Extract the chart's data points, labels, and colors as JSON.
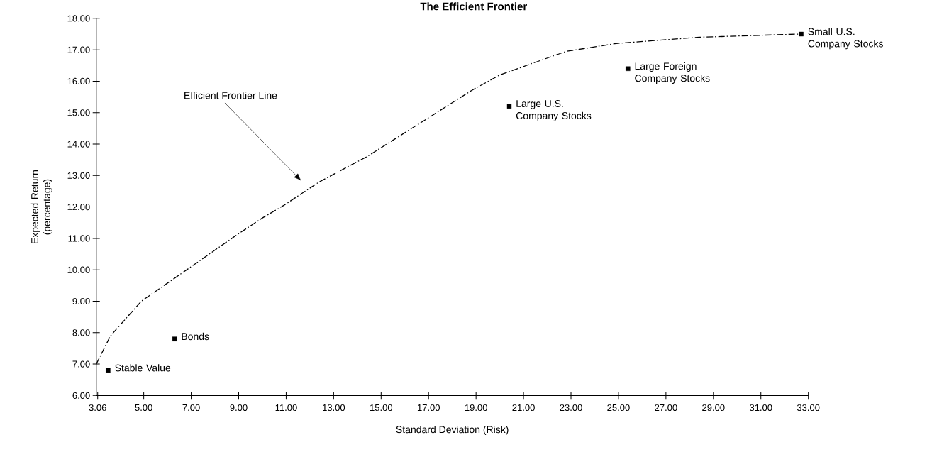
{
  "chart_data": {
    "type": "scatter",
    "title": "The Efficient Frontier",
    "xlabel": "Standard Deviation (Risk)",
    "ylabel": "Expected Return (percentage)",
    "xlim": [
      3,
      33
    ],
    "ylim": [
      6,
      18
    ],
    "xticks": [
      {
        "value": 3.06,
        "label": "3.06"
      },
      {
        "value": 5,
        "label": "5.00"
      },
      {
        "value": 7,
        "label": "7.00"
      },
      {
        "value": 9,
        "label": "9.00"
      },
      {
        "value": 11,
        "label": "11.00"
      },
      {
        "value": 13,
        "label": "13.00"
      },
      {
        "value": 15,
        "label": "15.00"
      },
      {
        "value": 17,
        "label": "17.00"
      },
      {
        "value": 19,
        "label": "19.00"
      },
      {
        "value": 21,
        "label": "21.00"
      },
      {
        "value": 23,
        "label": "23.00"
      },
      {
        "value": 25,
        "label": "25.00"
      },
      {
        "value": 27,
        "label": "27.00"
      },
      {
        "value": 29,
        "label": "29.00"
      },
      {
        "value": 31,
        "label": "31.00"
      },
      {
        "value": 33,
        "label": "33.00"
      }
    ],
    "yticks": [
      {
        "value": 6,
        "label": "6.00"
      },
      {
        "value": 7,
        "label": "7.00"
      },
      {
        "value": 8,
        "label": "8.00"
      },
      {
        "value": 9,
        "label": "9.00"
      },
      {
        "value": 10,
        "label": "10.00"
      },
      {
        "value": 11,
        "label": "11.00"
      },
      {
        "value": 12,
        "label": "12.00"
      },
      {
        "value": 13,
        "label": "13.00"
      },
      {
        "value": 14,
        "label": "14.00"
      },
      {
        "value": 15,
        "label": "15.00"
      },
      {
        "value": 16,
        "label": "16.00"
      },
      {
        "value": 17,
        "label": "17.00"
      },
      {
        "value": 18,
        "label": "18.00"
      }
    ],
    "marker": "square",
    "series": [
      {
        "type": "line",
        "color": "#000000",
        "line_style": "dashed",
        "marker": "none",
        "x": [
          3.0,
          3.6,
          4.9,
          7.0,
          8.9,
          10.0,
          10.9,
          12.4,
          14.4,
          16.5,
          18.8,
          20.0,
          21.3,
          22.8,
          24.9,
          28.4,
          32.6
        ],
        "values": [
          7.0,
          7.9,
          9.0,
          10.1,
          11.1,
          11.65,
          12.05,
          12.8,
          13.6,
          14.6,
          15.7,
          16.2,
          16.55,
          16.95,
          17.2,
          17.4,
          17.5
        ]
      },
      {
        "name": "Stable Value",
        "color": "#000000",
        "x": [
          3.5
        ],
        "values": [
          6.8
        ]
      },
      {
        "name": "Bonds",
        "color": "#000000",
        "x": [
          6.3
        ],
        "values": [
          7.8
        ]
      },
      {
        "name": "Large U.S. Company Stocks",
        "color": "#000000",
        "x": [
          20.4
        ],
        "values": [
          15.2
        ]
      },
      {
        "name": "Large Foreign Company Stocks",
        "color": "#000000",
        "x": [
          25.4
        ],
        "values": [
          16.4
        ]
      },
      {
        "name": "Small U.S. Company Stocks",
        "color": "#000000",
        "x": [
          32.7
        ],
        "values": [
          17.5
        ]
      }
    ],
    "annotations": [
      "Efficient Frontier Line"
    ]
  }
}
